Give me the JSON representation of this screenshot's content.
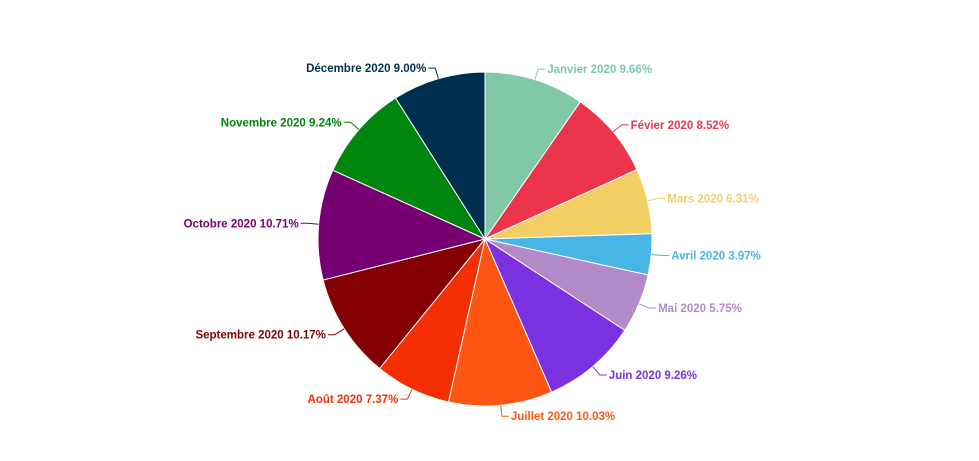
{
  "chart_data": {
    "type": "pie",
    "title": "",
    "unit": "%",
    "slices": [
      {
        "label": "Janvier 2020",
        "value": 9.66,
        "display": "Janvier 2020 9.66%",
        "color": "#80C8A8"
      },
      {
        "label": "Févier 2020",
        "value": 8.52,
        "display": "Févier 2020 8.52%",
        "color": "#EC354B"
      },
      {
        "label": "Mars 2020",
        "value": 6.31,
        "display": "Mars 2020 6.31%",
        "color": "#F3CE63"
      },
      {
        "label": "Avril 2020",
        "value": 3.97,
        "display": "Avril 2020 3.97%",
        "color": "#47B6E7"
      },
      {
        "label": "Mai 2020",
        "value": 5.75,
        "display": "Mai 2020 5.75%",
        "color": "#B28AC9"
      },
      {
        "label": "Juin 2020",
        "value": 9.26,
        "display": "Juin 2020 9.26%",
        "color": "#7A32E0"
      },
      {
        "label": "Juillet 2020",
        "value": 10.03,
        "display": "Juillet 2020 10.03%",
        "color": "#FF5512"
      },
      {
        "label": "Août 2020",
        "value": 7.37,
        "display": "Août 2020 7.37%",
        "color": "#F52F03"
      },
      {
        "label": "Septembre 2020",
        "value": 10.17,
        "display": "Septembre 2020 10.17%",
        "color": "#850000"
      },
      {
        "label": "Octobre 2020",
        "value": 10.71,
        "display": "Octobre 2020 10.71%",
        "color": "#760072"
      },
      {
        "label": "Novembre 2020",
        "value": 9.24,
        "display": "Novembre 2020 9.24%",
        "color": "#00860E"
      },
      {
        "label": "Décembre 2020",
        "value": 9.0,
        "display": "Décembre 2020 9.00%",
        "color": "#003050"
      }
    ]
  }
}
